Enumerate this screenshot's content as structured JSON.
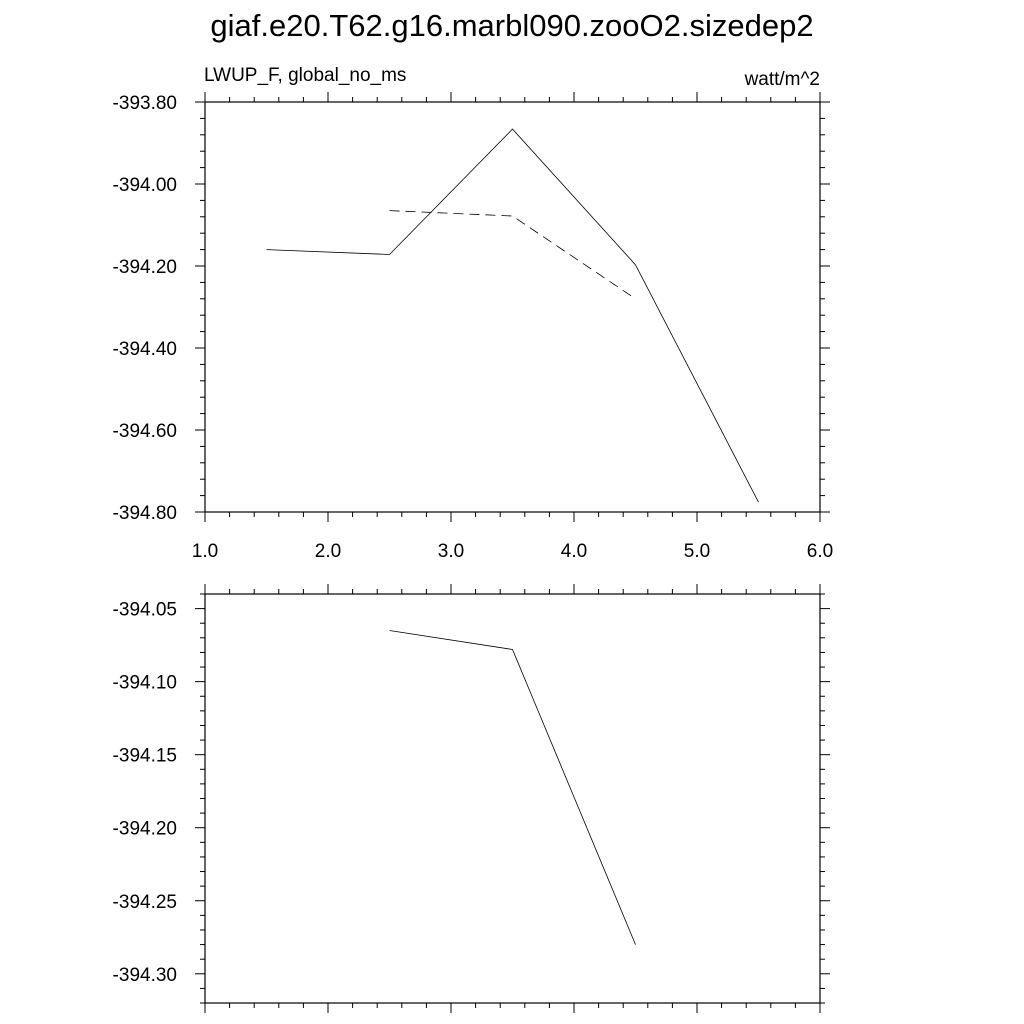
{
  "title": "giaf.e20.T62.g16.marbl090.zooO2.sizedep2",
  "panel_left_label": "LWUP_F, global_no_ms",
  "panel_right_label": "watt/m^2",
  "chart_data": [
    {
      "type": "line",
      "title": "LWUP_F, global_no_ms",
      "units": "watt/m^2",
      "xlim": [
        1.0,
        6.0
      ],
      "ylim": [
        -394.8,
        -393.8
      ],
      "x_ticks": [
        1.0,
        2.0,
        3.0,
        4.0,
        5.0,
        6.0
      ],
      "x_tick_labels": [
        "1.0",
        "2.0",
        "3.0",
        "4.0",
        "5.0",
        "6.0"
      ],
      "y_ticks": [
        -393.8,
        -394.0,
        -394.2,
        -394.4,
        -394.6,
        -394.8
      ],
      "y_tick_labels": [
        "-393.80",
        "-394.00",
        "-394.20",
        "-394.40",
        "-394.60",
        "-394.80"
      ],
      "series": [
        {
          "style": "solid",
          "x": [
            1.5,
            2.5,
            3.5,
            4.5,
            5.5
          ],
          "y": [
            -394.16,
            -394.172,
            -393.866,
            -394.197,
            -394.776
          ]
        },
        {
          "style": "dashed",
          "x": [
            2.5,
            3.5,
            4.5
          ],
          "y": [
            -394.065,
            -394.078,
            -394.28
          ]
        }
      ]
    },
    {
      "type": "line",
      "xlim": [
        1.0,
        6.0
      ],
      "ylim": [
        -394.32,
        -394.04
      ],
      "x_ticks": [
        1.0,
        2.0,
        3.0,
        4.0,
        5.0,
        6.0
      ],
      "x_tick_labels": [],
      "y_ticks": [
        -394.05,
        -394.1,
        -394.15,
        -394.2,
        -394.25,
        -394.3
      ],
      "y_tick_labels": [
        "-394.05",
        "-394.10",
        "-394.15",
        "-394.20",
        "-394.25",
        "-394.30"
      ],
      "series": [
        {
          "style": "solid",
          "x": [
            2.5,
            3.5,
            4.5
          ],
          "y": [
            -394.065,
            -394.078,
            -394.28
          ]
        }
      ]
    }
  ]
}
